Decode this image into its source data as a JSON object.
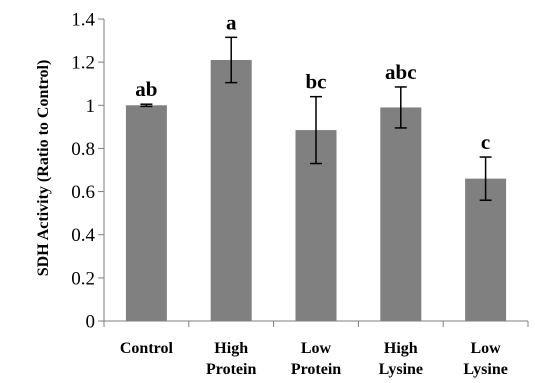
{
  "chart_data": {
    "type": "bar",
    "title": "",
    "xlabel": "",
    "ylabel": "SDH Activity (Ratio to Control)",
    "ylim": [
      0,
      1.4
    ],
    "yticks": [
      "0",
      "0.2",
      "0.4",
      "0.6",
      "0.8",
      "1",
      "1.2",
      "1.4"
    ],
    "grid": false,
    "legend": "none",
    "bar_color": "#808080",
    "categories": [
      [
        "Control"
      ],
      [
        "High",
        "Protein"
      ],
      [
        "Low",
        "Protein"
      ],
      [
        "High",
        "Lysine"
      ],
      [
        "Low",
        "Lysine"
      ]
    ],
    "values": [
      1.0,
      1.21,
      0.885,
      0.99,
      0.66
    ],
    "errors": [
      0.005,
      0.105,
      0.155,
      0.095,
      0.1
    ],
    "data_labels": [
      "ab",
      "a",
      "bc",
      "abc",
      "c"
    ]
  }
}
